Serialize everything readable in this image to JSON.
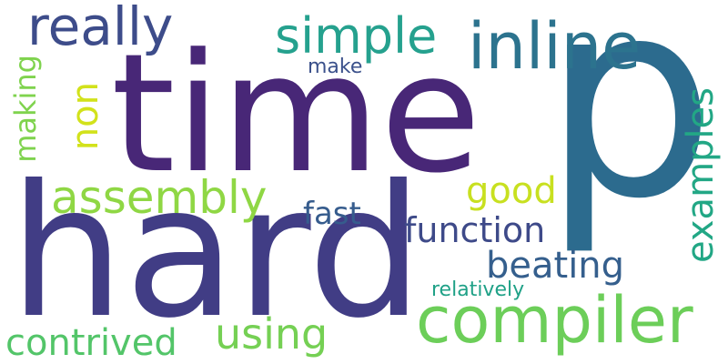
{
  "words": {
    "p": {
      "text": "p",
      "color": "#2c6b8e"
    },
    "time": {
      "text": "time",
      "color": "#482777"
    },
    "hard": {
      "text": "hard",
      "color": "#413d85"
    },
    "compiler": {
      "text": "compiler",
      "color": "#6cce59"
    },
    "inline": {
      "text": "inline",
      "color": "#2c738e"
    },
    "really": {
      "text": "really",
      "color": "#3d4c8a"
    },
    "simple": {
      "text": "simple",
      "color": "#25a18e"
    },
    "assembly": {
      "text": "assembly",
      "color": "#8fd744"
    },
    "contrived": {
      "text": "contrived",
      "color": "#53c569"
    },
    "using": {
      "text": "using",
      "color": "#75d054"
    },
    "beating": {
      "text": "beating",
      "color": "#355f8d"
    },
    "examples": {
      "text": "examples",
      "color": "#22a785"
    },
    "function": {
      "text": "function",
      "color": "#3e4a89"
    },
    "good": {
      "text": "good",
      "color": "#c8e020"
    },
    "fast": {
      "text": "fast",
      "color": "#365c8d"
    },
    "non": {
      "text": "non",
      "color": "#d2e21b"
    },
    "making": {
      "text": "making",
      "color": "#7fd34e"
    },
    "make": {
      "text": "make",
      "color": "#3b518b"
    },
    "relatively": {
      "text": "relatively",
      "color": "#1fa187"
    }
  }
}
